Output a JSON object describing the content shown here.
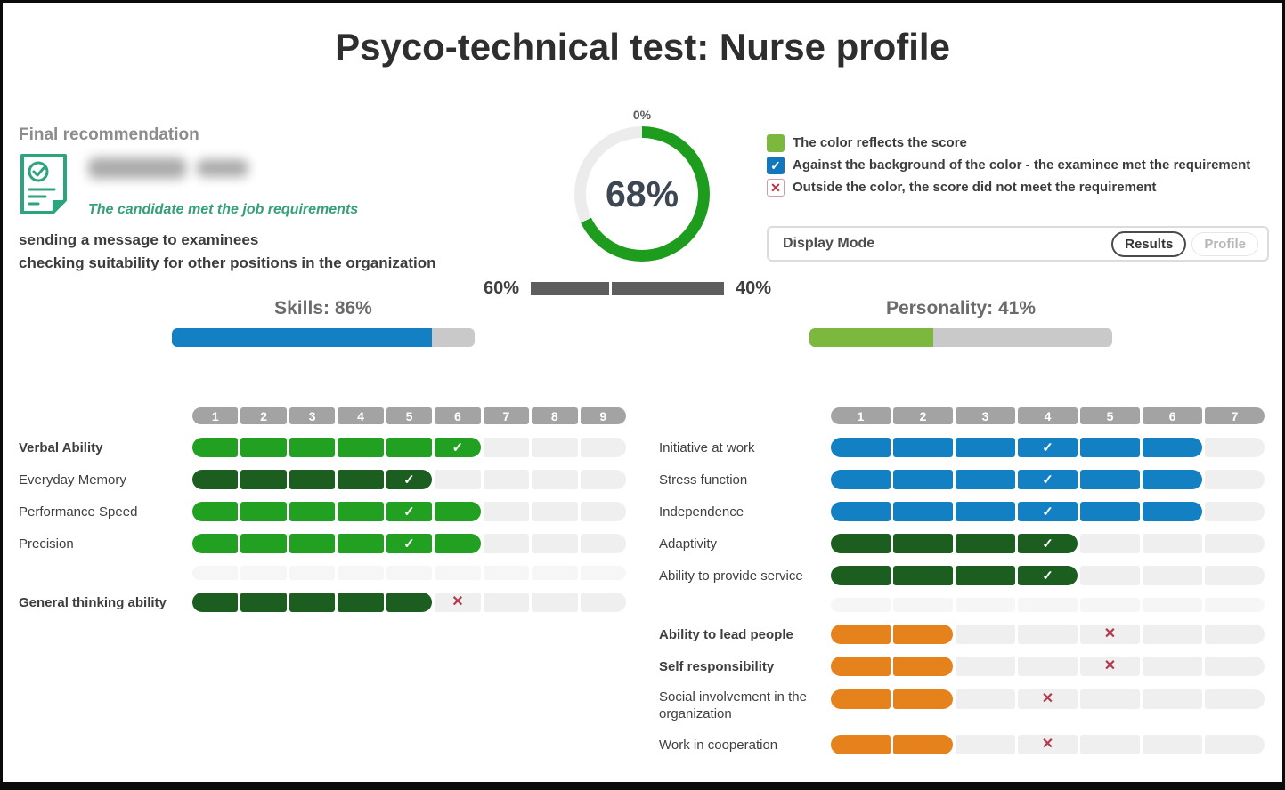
{
  "title": "Psyco-technical test: Nurse profile",
  "recommendation": {
    "heading": "Final recommendation",
    "verdict": "The candidate met the job requirements",
    "actions": [
      "sending a message to examinees",
      "checking suitability for other positions in the organization"
    ]
  },
  "gauge": {
    "top_label": "0%",
    "value_label": "68%",
    "percent": 68,
    "color": "#1e9c1e",
    "track_color": "#ececec"
  },
  "weights": {
    "left_label": "60%",
    "right_label": "40%",
    "divider_percent": 40.5
  },
  "legend": {
    "items": [
      {
        "icon": "score-color-swatch",
        "type": "swatch",
        "color": "#7cb83e",
        "text": "The color reflects the score"
      },
      {
        "icon": "met-requirement-checkbox",
        "type": "checkbox",
        "color": "#1377bd",
        "glyph": "✓",
        "text": "Against the background of the color - the examinee met the requirement"
      },
      {
        "icon": "not-met-x-box",
        "type": "xbox",
        "color": "#c0293e",
        "glyph": "✕",
        "text": "Outside the color, the score did not meet the requirement"
      }
    ]
  },
  "display_mode": {
    "label": "Display Mode",
    "options": [
      {
        "label": "Results",
        "active": true
      },
      {
        "label": "Profile",
        "active": false
      }
    ]
  },
  "summary_bars": {
    "skills": {
      "title": "Skills: 86%",
      "percent": 86,
      "color": "#1380c4"
    },
    "personality": {
      "title": "Personality: 41%",
      "percent": 41,
      "color": "#7cb83e"
    }
  },
  "palette": {
    "green": "#22a022",
    "darkgreen": "#1b5e1f",
    "blue": "#1380c4",
    "orange": "#e5821c"
  },
  "skills_table": {
    "scale": [
      "1",
      "2",
      "3",
      "4",
      "5",
      "6",
      "7",
      "8",
      "9"
    ],
    "rows": [
      {
        "label": "Verbal Ability",
        "bold": true,
        "color": "green",
        "filled": 6,
        "mark": "check",
        "mark_cell": 6
      },
      {
        "label": "Everyday Memory",
        "bold": false,
        "color": "darkgreen",
        "filled": 5,
        "mark": "check",
        "mark_cell": 5
      },
      {
        "label": "Performance Speed",
        "bold": false,
        "color": "green",
        "filled": 6,
        "mark": "check",
        "mark_cell": 5
      },
      {
        "label": "Precision",
        "bold": false,
        "color": "green",
        "filled": 6,
        "mark": "check",
        "mark_cell": 5
      },
      {
        "spacer": true
      },
      {
        "label": "General thinking ability",
        "bold": true,
        "color": "darkgreen",
        "filled": 5,
        "mark": "x",
        "mark_cell": 6
      }
    ]
  },
  "personality_table": {
    "scale": [
      "1",
      "2",
      "3",
      "4",
      "5",
      "6",
      "7"
    ],
    "rows": [
      {
        "label": "Initiative at work",
        "bold": false,
        "color": "blue",
        "filled": 6,
        "mark": "check",
        "mark_cell": 4
      },
      {
        "label": "Stress function",
        "bold": false,
        "color": "blue",
        "filled": 6,
        "mark": "check",
        "mark_cell": 4
      },
      {
        "label": "Independence",
        "bold": false,
        "color": "blue",
        "filled": 6,
        "mark": "check",
        "mark_cell": 4
      },
      {
        "label": "Adaptivity",
        "bold": false,
        "color": "darkgreen",
        "filled": 4,
        "mark": "check",
        "mark_cell": 4
      },
      {
        "label": "Ability to provide service",
        "bold": false,
        "color": "darkgreen",
        "filled": 4,
        "mark": "check",
        "mark_cell": 4
      },
      {
        "spacer": true
      },
      {
        "label": "Ability to lead people",
        "bold": true,
        "color": "orange",
        "filled": 2,
        "mark": "x",
        "mark_cell": 5
      },
      {
        "label": "Self responsibility",
        "bold": true,
        "color": "orange",
        "filled": 2,
        "mark": "x",
        "mark_cell": 5
      },
      {
        "label": "Social involvement in the organization",
        "bold": false,
        "color": "orange",
        "filled": 2,
        "mark": "x",
        "mark_cell": 4,
        "two_line": true
      },
      {
        "label": "Work in cooperation",
        "bold": false,
        "color": "orange",
        "filled": 2,
        "mark": "x",
        "mark_cell": 4
      }
    ]
  }
}
